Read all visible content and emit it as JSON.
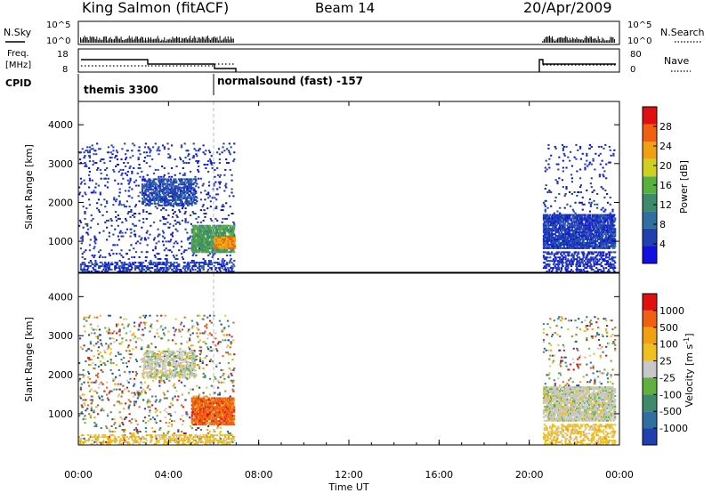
{
  "header": {
    "station": "King Salmon (fitACF)",
    "beam": "Beam 14",
    "date": "20/Apr/2009"
  },
  "noise_panel": {
    "left_label": "N.Sky",
    "right_label": "N.Search",
    "left_ticks": [
      "10^5",
      "10^0"
    ],
    "right_ticks": [
      "10^5",
      "10^0"
    ]
  },
  "freq_panel": {
    "left_label_1": "Freq.",
    "left_label_2": "[MHz]",
    "right_label": "Nave",
    "left_ticks": [
      "18",
      "8"
    ],
    "right_ticks": [
      "80",
      "0"
    ]
  },
  "cpid": {
    "label": "CPID",
    "segments": [
      {
        "name": "themis 3300",
        "start_hour": 0,
        "end_hour": 6
      },
      {
        "name": "normalsound (fast) -157",
        "start_hour": 6,
        "end_hour": 24
      }
    ]
  },
  "colors": {
    "power_scale": [
      "#1010e0",
      "#2040b0",
      "#3070a0",
      "#3e8a6a",
      "#58b040",
      "#d0d020",
      "#f0a010",
      "#f06010",
      "#e01010"
    ],
    "velocity_scale": [
      "#e01010",
      "#f06010",
      "#f0a010",
      "#f0c020",
      "#c8c8c8",
      "#60b040",
      "#3e8a6a",
      "#3070a0",
      "#2040b0"
    ]
  },
  "chart_data": [
    {
      "type": "heatmap",
      "quantity": "power",
      "ylabel": "Slant Range [km]",
      "xlabel": "Time UT",
      "xlim": [
        0,
        24
      ],
      "ylim": [
        200,
        4600
      ],
      "x_ticks": [
        "00:00",
        "04:00",
        "08:00",
        "12:00",
        "16:00",
        "20:00",
        "00:00"
      ],
      "y_ticks": [
        1000,
        2000,
        3000,
        4000
      ],
      "colorbar": {
        "label": "Power [dB]",
        "ticks": [
          4,
          8,
          12,
          16,
          20,
          24,
          28
        ],
        "range": [
          0,
          32
        ]
      },
      "regions": [
        {
          "t0": 0.0,
          "t1": 6.9,
          "r0": 250,
          "r1": 3500,
          "level": 4,
          "density": 0.06,
          "note": "scattered"
        },
        {
          "t0": 2.8,
          "t1": 5.2,
          "r0": 1900,
          "r1": 2600,
          "level": 6,
          "density": 0.45,
          "note": "band"
        },
        {
          "t0": 5.0,
          "t1": 6.9,
          "r0": 700,
          "r1": 1400,
          "level": 14,
          "density": 0.7,
          "note": "echo"
        },
        {
          "t0": 6.0,
          "t1": 6.9,
          "r0": 800,
          "r1": 1100,
          "level": 24,
          "density": 0.8,
          "note": "core"
        },
        {
          "t0": 0.0,
          "t1": 6.9,
          "r0": 200,
          "r1": 450,
          "level": 5,
          "density": 0.3,
          "note": "ground"
        },
        {
          "t0": 20.6,
          "t1": 23.8,
          "r0": 800,
          "r1": 1700,
          "level": 5,
          "density": 0.7,
          "note": "band"
        },
        {
          "t0": 20.6,
          "t1": 23.8,
          "r0": 200,
          "r1": 700,
          "level": 4,
          "density": 0.35,
          "note": "ground"
        },
        {
          "t0": 20.6,
          "t1": 23.8,
          "r0": 1700,
          "r1": 3500,
          "level": 4,
          "density": 0.05,
          "note": "scattered"
        }
      ]
    },
    {
      "type": "heatmap",
      "quantity": "velocity",
      "ylabel": "Slant Range [km]",
      "xlabel": "Time UT",
      "xlim": [
        0,
        24
      ],
      "ylim": [
        200,
        4600
      ],
      "x_ticks": [
        "00:00",
        "04:00",
        "08:00",
        "12:00",
        "16:00",
        "20:00",
        "00:00"
      ],
      "y_ticks": [
        1000,
        2000,
        3000,
        4000
      ],
      "colorbar": {
        "label": "Velocity [m s",
        "label_exponent": "-1",
        "label_close": "]",
        "ticks": [
          "1000",
          "500",
          "100",
          "25",
          "-25",
          "-100",
          "-500",
          "-1000"
        ]
      },
      "regions": [
        {
          "t0": 0.0,
          "t1": 6.9,
          "r0": 250,
          "r1": 3500,
          "bin": -1,
          "density": 0.06,
          "note": "scattered"
        },
        {
          "t0": 2.8,
          "t1": 5.2,
          "r0": 1900,
          "r1": 2600,
          "bin": 4,
          "density": 0.45,
          "note": "band"
        },
        {
          "t0": 5.0,
          "t1": 6.9,
          "r0": 700,
          "r1": 1400,
          "bin": 1,
          "density": 0.75,
          "note": "echo"
        },
        {
          "t0": 0.0,
          "t1": 6.9,
          "r0": 200,
          "r1": 450,
          "bin": 3,
          "density": 0.3,
          "note": "ground"
        },
        {
          "t0": 20.6,
          "t1": 23.8,
          "r0": 800,
          "r1": 1700,
          "bin": 4,
          "density": 0.7,
          "note": "band"
        },
        {
          "t0": 20.6,
          "t1": 23.8,
          "r0": 200,
          "r1": 700,
          "bin": 3,
          "density": 0.35,
          "note": "ground"
        },
        {
          "t0": 20.6,
          "t1": 23.8,
          "r0": 1700,
          "r1": 3500,
          "bin": -1,
          "density": 0.05,
          "note": "scattered"
        }
      ]
    }
  ]
}
